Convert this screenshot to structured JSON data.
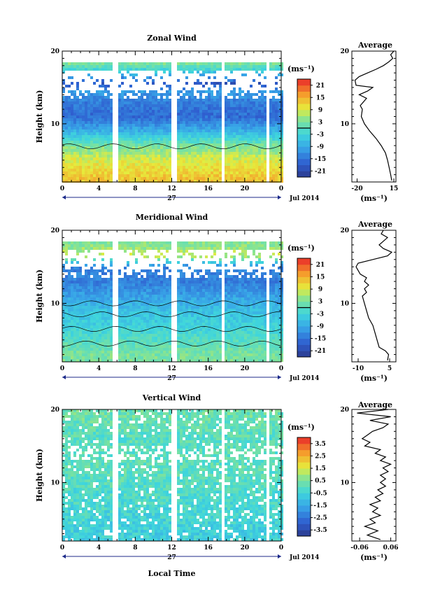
{
  "chart_data": [
    {
      "type": "heatmap",
      "title": "Zonal Wind",
      "ylabel": "Height (km)",
      "units": "(ms⁻¹)",
      "x_ticks": [
        "0",
        "4",
        "8",
        "12",
        "16",
        "20",
        "0"
      ],
      "x_range": [
        0,
        24
      ],
      "y_ticks": [
        "10",
        "20"
      ],
      "y_range": [
        2,
        20
      ],
      "date_day": "27",
      "date_label": "Jul 2014",
      "colorbar_ticks": [
        "21",
        "15",
        "9",
        "3",
        "-3",
        "-9",
        "-15",
        "-21"
      ],
      "colorbar_range": [
        -24,
        24
      ],
      "data_gaps_hours": [
        [
          5.6,
          6.2
        ],
        [
          12.0,
          12.5
        ],
        [
          17.6,
          17.9
        ],
        [
          18.6,
          18.8
        ],
        [
          22.4,
          22.7
        ],
        [
          22.9,
          23.1
        ]
      ],
      "profile_summary": [
        {
          "height": 2.5,
          "value": 13
        },
        {
          "height": 5,
          "value": 9
        },
        {
          "height": 7,
          "value": 3
        },
        {
          "height": 9,
          "value": -8
        },
        {
          "height": 11,
          "value": -16
        },
        {
          "height": 13,
          "value": -14
        },
        {
          "height": 14.5,
          "value": -10
        },
        {
          "height": 15.5,
          "value": -19
        },
        {
          "height": 17.5,
          "value": -2
        },
        {
          "height": 19.5,
          "value": 12
        }
      ],
      "average": {
        "title": "Average",
        "xlabel": "(ms⁻¹)",
        "x_ticks": [
          "-20",
          "15"
        ],
        "xlim": [
          -25,
          17
        ],
        "y_ticks": [
          "10",
          "20"
        ],
        "ylim": [
          2,
          20
        ],
        "profile": [
          {
            "h": 2.2,
            "v": 13
          },
          {
            "h": 3,
            "v": 12
          },
          {
            "h": 4,
            "v": 10.5
          },
          {
            "h": 5,
            "v": 9
          },
          {
            "h": 6,
            "v": 7
          },
          {
            "h": 7,
            "v": 3
          },
          {
            "h": 8,
            "v": -2
          },
          {
            "h": 9,
            "v": -8
          },
          {
            "h": 10,
            "v": -13
          },
          {
            "h": 11,
            "v": -16
          },
          {
            "h": 12,
            "v": -15
          },
          {
            "h": 12.5,
            "v": -17
          },
          {
            "h": 13,
            "v": -14
          },
          {
            "h": 13.5,
            "v": -11
          },
          {
            "h": 14,
            "v": -18
          },
          {
            "h": 14.5,
            "v": -10
          },
          {
            "h": 15,
            "v": -5
          },
          {
            "h": 15.3,
            "v": -21
          },
          {
            "h": 16,
            "v": -22
          },
          {
            "h": 16.5,
            "v": -18
          },
          {
            "h": 17,
            "v": -10
          },
          {
            "h": 17.5,
            "v": -2
          },
          {
            "h": 18,
            "v": 5
          },
          {
            "h": 18.5,
            "v": 10
          },
          {
            "h": 19,
            "v": 14
          },
          {
            "h": 19.5,
            "v": 12
          },
          {
            "h": 20,
            "v": 15
          }
        ]
      }
    },
    {
      "type": "heatmap",
      "title": "Meridional Wind",
      "ylabel": "Height (km)",
      "units": "(ms⁻¹)",
      "x_ticks": [
        "0",
        "4",
        "8",
        "12",
        "16",
        "20",
        "0"
      ],
      "x_range": [
        0,
        24
      ],
      "y_ticks": [
        "10",
        "20"
      ],
      "y_range": [
        2,
        20
      ],
      "date_day": "27",
      "date_label": "Jul 2014",
      "colorbar_ticks": [
        "21",
        "15",
        "9",
        "3",
        "-3",
        "-9",
        "-15",
        "-21"
      ],
      "colorbar_range": [
        -24,
        24
      ],
      "data_gaps_hours": [
        [
          5.6,
          6.2
        ],
        [
          12.0,
          12.5
        ],
        [
          17.6,
          17.9
        ],
        [
          18.6,
          18.8
        ],
        [
          22.4,
          22.7
        ],
        [
          22.9,
          23.1
        ]
      ],
      "profile_summary": [
        {
          "height": 3,
          "value": 3
        },
        {
          "height": 6,
          "value": -2
        },
        {
          "height": 9,
          "value": -6
        },
        {
          "height": 11,
          "value": -10
        },
        {
          "height": 13,
          "value": -14
        },
        {
          "height": 15,
          "value": -13
        },
        {
          "height": 16.5,
          "value": 8
        },
        {
          "height": 18,
          "value": 4
        }
      ],
      "average": {
        "title": "Average",
        "xlabel": "(ms⁻¹)",
        "x_ticks": [
          "-10",
          "5"
        ],
        "xlim": [
          -13,
          8
        ],
        "y_ticks": [
          "10",
          "20"
        ],
        "ylim": [
          2,
          20
        ],
        "profile": [
          {
            "h": 2.2,
            "v": 4
          },
          {
            "h": 3,
            "v": 4.5
          },
          {
            "h": 3.5,
            "v": 3
          },
          {
            "h": 4,
            "v": 0
          },
          {
            "h": 5,
            "v": -1
          },
          {
            "h": 6,
            "v": -2
          },
          {
            "h": 7,
            "v": -3
          },
          {
            "h": 8,
            "v": -5
          },
          {
            "h": 9,
            "v": -6
          },
          {
            "h": 10,
            "v": -7
          },
          {
            "h": 11,
            "v": -8
          },
          {
            "h": 11.5,
            "v": -6
          },
          {
            "h": 12,
            "v": -7
          },
          {
            "h": 12.5,
            "v": -5
          },
          {
            "h": 13,
            "v": -7
          },
          {
            "h": 13.5,
            "v": -6
          },
          {
            "h": 14,
            "v": -9
          },
          {
            "h": 15,
            "v": -11
          },
          {
            "h": 15.5,
            "v": -10
          },
          {
            "h": 16,
            "v": -3
          },
          {
            "h": 16.5,
            "v": 4
          },
          {
            "h": 17,
            "v": 6
          },
          {
            "h": 17.5,
            "v": 2
          },
          {
            "h": 18,
            "v": 0
          },
          {
            "h": 18.5,
            "v": 2
          },
          {
            "h": 19,
            "v": 4
          },
          {
            "h": 19.5,
            "v": 1
          },
          {
            "h": 20,
            "v": 2
          }
        ]
      }
    },
    {
      "type": "heatmap",
      "title": "Vertical Wind",
      "ylabel": "Height (km)",
      "xlabel": "Local Time",
      "units": "(ms⁻¹)",
      "x_ticks": [
        "0",
        "4",
        "8",
        "12",
        "16",
        "20",
        "0"
      ],
      "x_range": [
        0,
        24
      ],
      "y_ticks": [
        "10",
        "20"
      ],
      "y_range": [
        2,
        20
      ],
      "date_day": "27",
      "date_label": "Jul 2014",
      "colorbar_ticks": [
        "3.5",
        "2.5",
        "1.5",
        "0.5",
        "-0.5",
        "-1.5",
        "-2.5",
        "-3.5"
      ],
      "colorbar_range": [
        -4,
        4
      ],
      "data_gaps_hours": [
        [
          5.6,
          6.2
        ],
        [
          12.0,
          12.5
        ],
        [
          17.6,
          17.9
        ],
        [
          18.6,
          18.8
        ],
        [
          22.4,
          22.7
        ],
        [
          22.9,
          23.1
        ]
      ],
      "profile_summary": [
        {
          "height": 3,
          "value": -0.6
        },
        {
          "height": 8,
          "value": -0.2
        },
        {
          "height": 12,
          "value": 0.1
        },
        {
          "height": 16,
          "value": 0.0
        },
        {
          "height": 19,
          "value": 0.3
        }
      ],
      "average": {
        "title": "Average",
        "xlabel": "(ms⁻¹)",
        "x_ticks": [
          "-0.06",
          "0.06"
        ],
        "xlim": [
          -0.09,
          0.08
        ],
        "y_ticks": [
          "10",
          "20"
        ],
        "ylim": [
          2,
          20
        ],
        "profile": [
          {
            "h": 2.2,
            "v": 0.02
          },
          {
            "h": 2.8,
            "v": -0.03
          },
          {
            "h": 3.4,
            "v": 0.01
          },
          {
            "h": 4,
            "v": -0.04
          },
          {
            "h": 4.5,
            "v": 0.0
          },
          {
            "h": 5,
            "v": -0.02
          },
          {
            "h": 5.5,
            "v": 0.02
          },
          {
            "h": 6,
            "v": -0.01
          },
          {
            "h": 6.5,
            "v": 0.01
          },
          {
            "h": 7,
            "v": -0.02
          },
          {
            "h": 7.5,
            "v": 0.02
          },
          {
            "h": 8,
            "v": 0.0
          },
          {
            "h": 8.5,
            "v": 0.03
          },
          {
            "h": 9,
            "v": 0.01
          },
          {
            "h": 9.5,
            "v": 0.04
          },
          {
            "h": 10,
            "v": 0.02
          },
          {
            "h": 10.5,
            "v": 0.04
          },
          {
            "h": 11,
            "v": 0.02
          },
          {
            "h": 11.5,
            "v": 0.05
          },
          {
            "h": 12,
            "v": 0.03
          },
          {
            "h": 12.5,
            "v": 0.06
          },
          {
            "h": 13,
            "v": 0.02
          },
          {
            "h": 13.5,
            "v": 0.04
          },
          {
            "h": 14,
            "v": 0.0
          },
          {
            "h": 14.5,
            "v": 0.02
          },
          {
            "h": 15,
            "v": -0.04
          },
          {
            "h": 15.5,
            "v": -0.02
          },
          {
            "h": 16,
            "v": -0.05
          },
          {
            "h": 16.5,
            "v": -0.03
          },
          {
            "h": 17,
            "v": -0.01
          },
          {
            "h": 17.5,
            "v": 0.03
          },
          {
            "h": 18,
            "v": 0.05
          },
          {
            "h": 18.5,
            "v": -0.02
          },
          {
            "h": 19,
            "v": 0.06
          },
          {
            "h": 19.5,
            "v": -0.07
          },
          {
            "h": 20,
            "v": 0.05
          }
        ]
      }
    }
  ]
}
